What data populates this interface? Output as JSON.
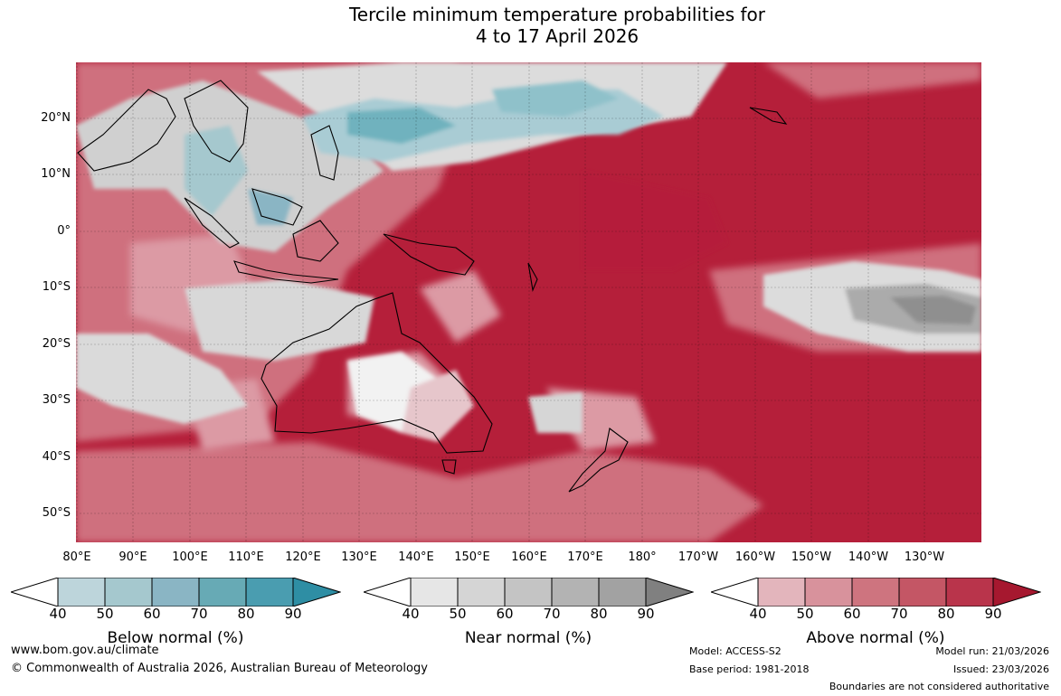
{
  "title": {
    "line1": "Tercile minimum temperature probabilities for",
    "line2": "4 to 17 April 2026"
  },
  "map": {
    "lat_labels": [
      "20°N",
      "10°N",
      "0°",
      "10°S",
      "20°S",
      "30°S",
      "40°S",
      "50°S"
    ],
    "lon_labels": [
      "80°E",
      "90°E",
      "100°E",
      "110°E",
      "120°E",
      "130°E",
      "140°E",
      "150°E",
      "160°E",
      "170°E",
      "180°",
      "170°W",
      "160°W",
      "150°W",
      "140°W",
      "130°W"
    ],
    "dominant_color": "#b51f3a"
  },
  "legends": [
    {
      "title": "Below normal (%)",
      "ticks": [
        "40",
        "50",
        "60",
        "70",
        "80",
        "90"
      ],
      "colors": [
        "#ffffff",
        "#bdd5db",
        "#a5c8ce",
        "#8ab5c4",
        "#67aab5",
        "#4a9db0",
        "#2e8ea4"
      ]
    },
    {
      "title": "Near normal (%)",
      "ticks": [
        "40",
        "50",
        "60",
        "70",
        "80",
        "90"
      ],
      "colors": [
        "#ffffff",
        "#e6e6e6",
        "#d5d5d5",
        "#c4c4c4",
        "#b3b3b3",
        "#a2a2a2",
        "#808080"
      ]
    },
    {
      "title": "Above normal (%)",
      "ticks": [
        "40",
        "50",
        "60",
        "70",
        "80",
        "90"
      ],
      "colors": [
        "#ffffff",
        "#e3b5bc",
        "#d8929c",
        "#ce747f",
        "#c45665",
        "#b9344b",
        "#a6182f"
      ]
    }
  ],
  "footer": {
    "url": "www.bom.gov.au/climate",
    "copyright": "© Commonwealth of Australia 2026, Australian Bureau of Meteorology",
    "model": "Model: ACCESS-S2",
    "base_period": "Base period: 1981-2018",
    "model_run": "Model run: 21/03/2026",
    "issued": "Issued: 23/03/2026",
    "disclaimer": "Boundaries are not considered authoritative"
  }
}
